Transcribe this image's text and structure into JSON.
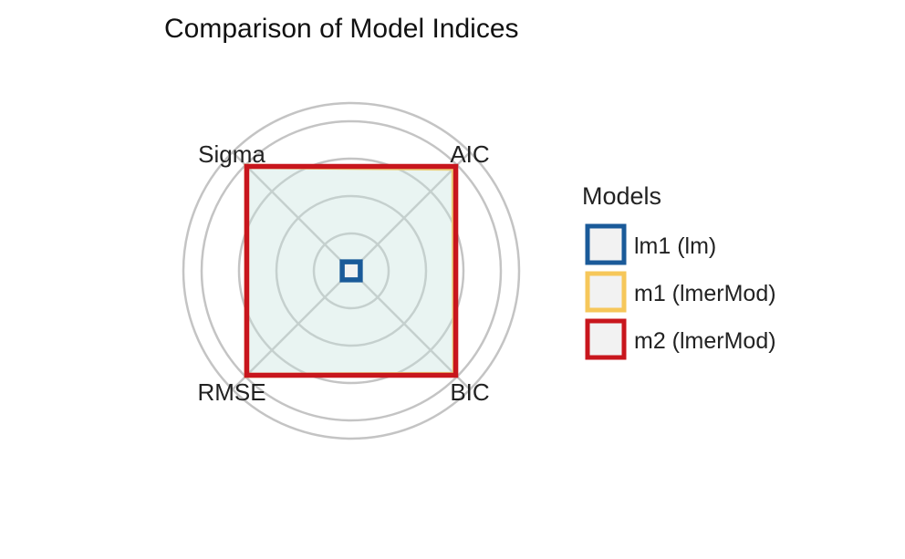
{
  "chart_data": {
    "type": "radar",
    "title": "Comparison of Model Indices",
    "axes": [
      "AIC",
      "BIC",
      "RMSE",
      "Sigma"
    ],
    "rlim": [
      0,
      1
    ],
    "grid": true,
    "legend": {
      "title": "Models",
      "position": "right"
    },
    "series": [
      {
        "name": "lm1 (lm)",
        "color": "#1a5a99",
        "values": [
          0.0,
          0.0,
          0.0,
          0.0
        ]
      },
      {
        "name": "m1 (lmerMod)",
        "color": "#f6c75a",
        "values": [
          0.98,
          0.99,
          1.0,
          1.0
        ]
      },
      {
        "name": "m2 (lmerMod)",
        "color": "#c8161d",
        "values": [
          1.0,
          1.0,
          1.0,
          1.0
        ]
      }
    ]
  }
}
